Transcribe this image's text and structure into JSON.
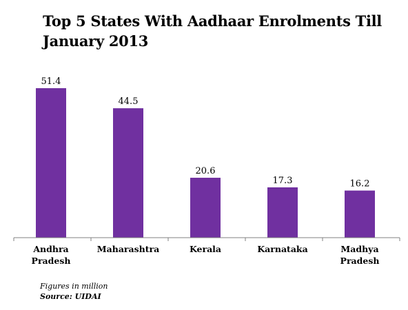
{
  "chart_data": {
    "type": "bar",
    "title": "Top 5 States With Aadhaar Enrolments Till January 2013",
    "categories": [
      "Andhra Pradesh",
      "Maharashtra",
      "Kerala",
      "Karnataka",
      "Madhya Pradesh"
    ],
    "category_lines": [
      [
        "Andhra",
        "Pradesh"
      ],
      [
        "Maharashtra"
      ],
      [
        "Kerala"
      ],
      [
        "Karnataka"
      ],
      [
        "Madhya",
        "Pradesh"
      ]
    ],
    "values": [
      51.4,
      44.5,
      20.6,
      17.3,
      16.2
    ],
    "value_labels": [
      "51.4",
      "44.5",
      "20.6",
      "17.3",
      "16.2"
    ],
    "xlabel": "",
    "ylabel": "",
    "ylim": [
      0,
      51.4
    ],
    "grid": false,
    "legend": "none",
    "bar_color": "#7030a0",
    "axis_color": "#808080"
  },
  "footnotes": {
    "units": "Figures in  million",
    "source": "Source: UIDAI"
  }
}
